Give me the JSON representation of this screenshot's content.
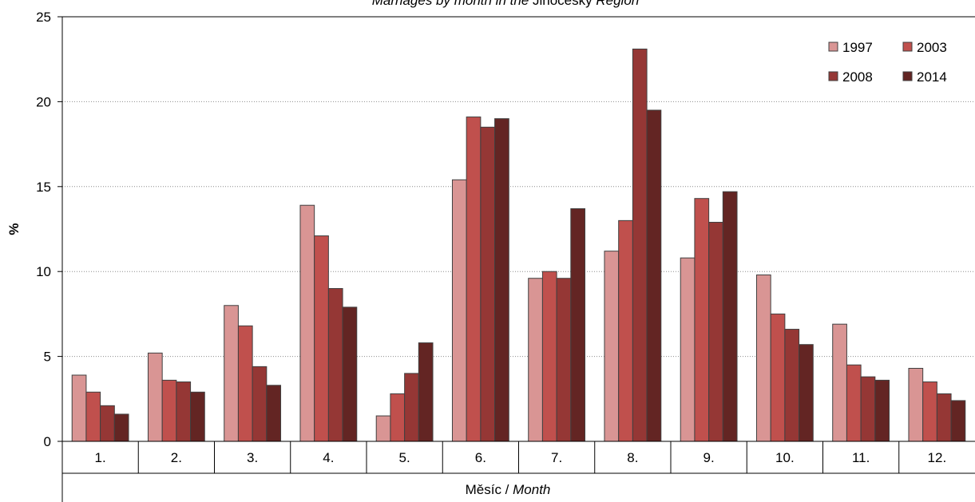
{
  "chart_data": {
    "type": "bar",
    "title_parts": [
      {
        "text": "Marriages by month in the ",
        "italic": true
      },
      {
        "text": "Jihočeský",
        "italic": false
      },
      {
        "text": " Region",
        "italic": true
      }
    ],
    "xlabel_parts": [
      {
        "text": "Měsíc / ",
        "italic": false
      },
      {
        "text": "Month",
        "italic": true
      }
    ],
    "ylabel": "%",
    "ylim": [
      0,
      25
    ],
    "yticks": [
      0,
      5,
      10,
      15,
      20,
      25
    ],
    "grid": true,
    "legend_position": "top-right",
    "categories": [
      "1.",
      "2.",
      "3.",
      "4.",
      "5.",
      "6.",
      "7.",
      "8.",
      "9.",
      "10.",
      "11.",
      "12."
    ],
    "series": [
      {
        "name": "1997",
        "color": "#d99594",
        "values": [
          3.9,
          5.2,
          8.0,
          13.9,
          1.5,
          15.4,
          9.6,
          11.2,
          10.8,
          9.8,
          6.9,
          4.3
        ]
      },
      {
        "name": "2003",
        "color": "#c0504d",
        "values": [
          2.9,
          3.6,
          6.8,
          12.1,
          2.8,
          19.1,
          10.0,
          13.0,
          14.3,
          7.5,
          4.5,
          3.5
        ]
      },
      {
        "name": "2008",
        "color": "#953735",
        "values": [
          2.1,
          3.5,
          4.4,
          9.0,
          4.0,
          18.5,
          9.6,
          23.1,
          12.9,
          6.6,
          3.8,
          2.8
        ]
      },
      {
        "name": "2014",
        "color": "#632523",
        "values": [
          1.6,
          2.9,
          3.3,
          7.9,
          5.8,
          19.0,
          13.7,
          19.5,
          14.7,
          5.7,
          3.6,
          2.4
        ]
      }
    ]
  }
}
